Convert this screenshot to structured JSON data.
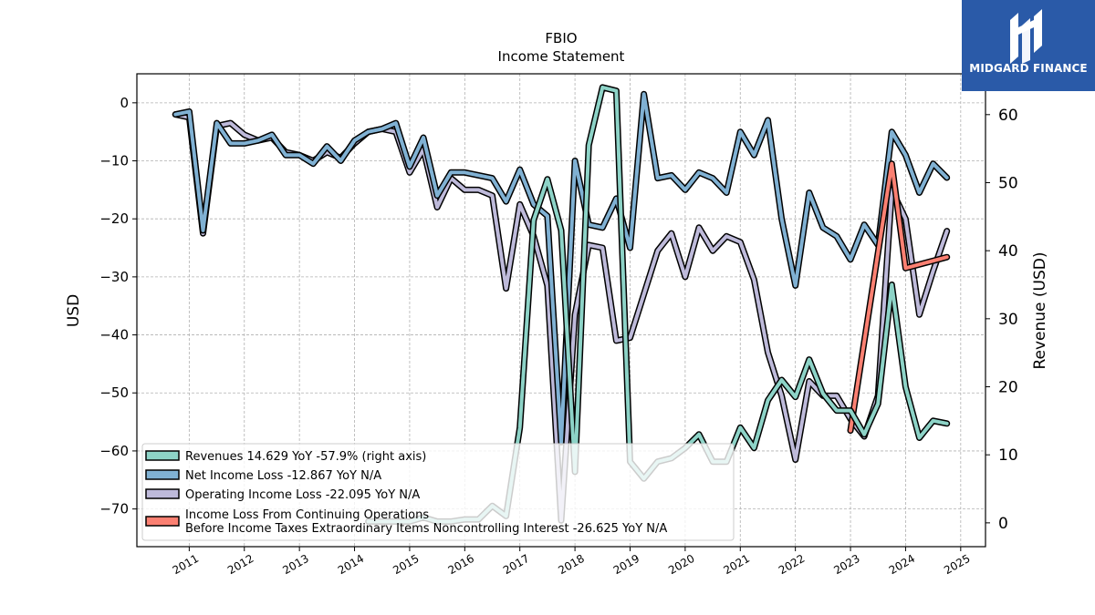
{
  "chart_data": {
    "type": "line",
    "title": "FBIO",
    "subtitle": "Income Statement",
    "ylabel": "USD",
    "ylabel_right": "Revenue (USD)",
    "ylim": [
      -76.5,
      5
    ],
    "ylim_right": [
      -3.5,
      66
    ],
    "yticks": [
      0,
      -10,
      -20,
      -30,
      -40,
      -50,
      -60,
      -70
    ],
    "yticks_right": [
      0,
      10,
      20,
      30,
      40,
      50,
      60
    ],
    "xlim": [
      2010.05,
      2025.45
    ],
    "xticks": [
      "2011",
      "2012",
      "2013",
      "2014",
      "2015",
      "2016",
      "2017",
      "2018",
      "2019",
      "2020",
      "2021",
      "2022",
      "2023",
      "2024",
      "2025"
    ],
    "grid": true,
    "legend_position": "lower-left",
    "series": [
      {
        "name": "Revenues  14.629 YoY -57.9% (right axis)",
        "axis": "right",
        "color": "#8dd3c7",
        "x": [
          2014.25,
          2014.5,
          2014.75,
          2015.0,
          2015.25,
          2015.5,
          2015.75,
          2016.0,
          2016.25,
          2016.5,
          2016.75,
          2017.0,
          2017.25,
          2017.5,
          2017.75,
          2018.0,
          2018.25,
          2018.5,
          2018.75,
          2019.0,
          2019.25,
          2019.5,
          2019.75,
          2020.0,
          2020.25,
          2020.5,
          2020.75,
          2021.0,
          2021.25,
          2021.5,
          2021.75,
          2022.0,
          2022.25,
          2022.5,
          2022.75,
          2023.0,
          2023.25,
          2023.5,
          2023.75,
          2024.0,
          2024.25,
          2024.5,
          2024.75
        ],
        "values": [
          0.2,
          0.2,
          0.2,
          0.2,
          0.8,
          0.2,
          0.2,
          0.5,
          0.5,
          2.5,
          1.0,
          14.0,
          44.5,
          50.5,
          43.0,
          7.5,
          55.5,
          64.0,
          63.5,
          9.0,
          6.5,
          9.0,
          9.5,
          11.0,
          13.0,
          9.0,
          9.0,
          14.0,
          11.0,
          18.0,
          21.0,
          18.5,
          24.0,
          19.0,
          16.5,
          16.5,
          13.0,
          17.5,
          35.0,
          20.0,
          12.5,
          15.0,
          14.6
        ]
      },
      {
        "name": "Net Income Loss  -12.867 YoY N/A",
        "axis": "left",
        "color": "#80b1d3",
        "x": [
          2010.75,
          2011.0,
          2011.25,
          2011.5,
          2011.75,
          2012.0,
          2012.25,
          2012.5,
          2012.75,
          2013.0,
          2013.25,
          2013.5,
          2013.75,
          2014.0,
          2014.25,
          2014.5,
          2014.75,
          2015.0,
          2015.25,
          2015.5,
          2015.75,
          2016.0,
          2016.25,
          2016.5,
          2016.75,
          2017.0,
          2017.25,
          2017.5,
          2017.75,
          2018.0,
          2018.25,
          2018.5,
          2018.75,
          2019.0,
          2019.25,
          2019.5,
          2019.75,
          2020.0,
          2020.25,
          2020.5,
          2020.75,
          2021.0,
          2021.25,
          2021.5,
          2021.75,
          2022.0,
          2022.25,
          2022.5,
          2022.75,
          2023.0,
          2023.25,
          2023.5,
          2023.75,
          2024.0,
          2024.25,
          2024.5,
          2024.75
        ],
        "values": [
          -2.0,
          -1.5,
          -22.0,
          -3.5,
          -7.0,
          -7.0,
          -6.5,
          -5.5,
          -9.0,
          -9.0,
          -10.5,
          -7.5,
          -10.0,
          -6.5,
          -5.0,
          -4.5,
          -3.5,
          -11.0,
          -6.0,
          -16.0,
          -12.0,
          -12.0,
          -12.5,
          -13.0,
          -17.0,
          -11.5,
          -17.5,
          -19.5,
          -58.5,
          -10.0,
          -21.0,
          -21.5,
          -16.5,
          -25.0,
          1.5,
          -13.0,
          -12.5,
          -15.0,
          -12.0,
          -13.0,
          -15.5,
          -5.0,
          -9.0,
          -3.0,
          -20.0,
          -31.5,
          -15.5,
          -21.5,
          -23.0,
          -27.0,
          -21.0,
          -24.5,
          -5.0,
          -9.0,
          -15.5,
          -10.5,
          -12.9
        ]
      },
      {
        "name": "Operating Income Loss  -22.095 YoY N/A",
        "axis": "left",
        "color": "#bebada",
        "x": [
          2010.75,
          2011.0,
          2011.25,
          2011.5,
          2011.75,
          2012.0,
          2012.25,
          2012.5,
          2012.75,
          2013.0,
          2013.25,
          2013.5,
          2013.75,
          2014.0,
          2014.25,
          2014.5,
          2014.75,
          2015.0,
          2015.25,
          2015.5,
          2015.75,
          2016.0,
          2016.25,
          2016.5,
          2016.75,
          2017.0,
          2017.25,
          2017.5,
          2017.75,
          2018.0,
          2018.25,
          2018.5,
          2018.75,
          2019.0,
          2019.25,
          2019.5,
          2019.75,
          2020.0,
          2020.25,
          2020.5,
          2020.75,
          2021.0,
          2021.25,
          2021.5,
          2021.75,
          2022.0,
          2022.25,
          2022.5,
          2022.75,
          2023.0,
          2023.25,
          2023.5,
          2023.75,
          2024.0,
          2024.25,
          2024.5,
          2024.75
        ],
        "values": [
          -2.0,
          -2.5,
          -22.5,
          -4.0,
          -3.5,
          -5.5,
          -6.5,
          -6.0,
          -8.5,
          -9.0,
          -10.0,
          -8.5,
          -9.5,
          -7.0,
          -5.0,
          -4.5,
          -5.0,
          -12.0,
          -8.0,
          -18.0,
          -13.0,
          -15.0,
          -15.0,
          -16.0,
          -32.0,
          -17.5,
          -23.0,
          -31.5,
          -72.0,
          -36.5,
          -24.5,
          -25.0,
          -41.0,
          -40.5,
          -33.0,
          -25.5,
          -22.5,
          -30.0,
          -21.5,
          -25.5,
          -23.0,
          -24.0,
          -30.5,
          -43.0,
          -50.5,
          -61.5,
          -48.0,
          -50.5,
          -50.5,
          -54.5,
          -57.5,
          -50.5,
          -15.0,
          -20.0,
          -36.5,
          -29.0,
          -22.1
        ]
      },
      {
        "name": "Income Loss From Continuing Operations Before Income Taxes Extraordinary Items Noncontrolling Interest  -26.625 YoY N/A",
        "legend_lines": [
          "Income Loss From Continuing Operations",
          "Before Income Taxes Extraordinary Items Noncontrolling Interest  -26.625 YoY N/A"
        ],
        "axis": "left",
        "color": "#fb8072",
        "x": [
          2023.0,
          2023.75,
          2024.0,
          2024.75
        ],
        "values": [
          -56.5,
          -10.5,
          -28.5,
          -26.6
        ]
      }
    ]
  },
  "logo": {
    "text": "MIDGARD FINANCE"
  }
}
